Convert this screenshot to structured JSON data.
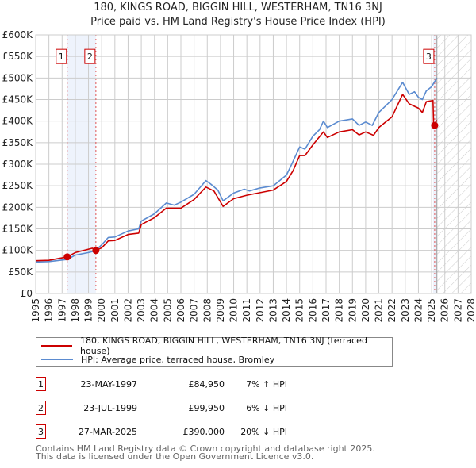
{
  "chart_data": {
    "type": "line",
    "title": "180, KINGS ROAD, BIGGIN HILL, WESTERHAM, TN16 3NJ",
    "subtitle": "Price paid vs. HM Land Registry's House Price Index (HPI)",
    "xlim": [
      1995,
      2028
    ],
    "ylim": [
      0,
      600000
    ],
    "yticks": [
      0,
      50000,
      100000,
      150000,
      200000,
      250000,
      300000,
      350000,
      400000,
      450000,
      500000,
      550000,
      600000
    ],
    "ytick_labels": [
      "£0",
      "£50K",
      "£100K",
      "£150K",
      "£200K",
      "£250K",
      "£300K",
      "£350K",
      "£400K",
      "£450K",
      "£500K",
      "£550K",
      "£600K"
    ],
    "xticks": [
      1995,
      1996,
      1997,
      1998,
      1999,
      2000,
      2001,
      2002,
      2003,
      2004,
      2005,
      2006,
      2007,
      2008,
      2009,
      2010,
      2011,
      2012,
      2013,
      2014,
      2015,
      2016,
      2017,
      2018,
      2019,
      2020,
      2021,
      2022,
      2023,
      2024,
      2025,
      2026,
      2027,
      2028
    ],
    "grid": true,
    "forecast_hatch_from": 2025.4,
    "colors": {
      "property": "#cc0000",
      "hpi": "#5b8bd0"
    },
    "series": [
      {
        "name": "180, KINGS ROAD, BIGGIN HILL, WESTERHAM, TN16 3NJ (terraced house)",
        "x": [
          1995,
          1996,
          1997.39,
          1998,
          1999.3,
          1999.56,
          2000,
          2000.5,
          2001,
          2002,
          2002.8,
          2003,
          2004,
          2004.9,
          2006,
          2007,
          2007.9,
          2008.5,
          2009.2,
          2010,
          2011,
          2012,
          2013,
          2014,
          2014.5,
          2015,
          2015.4,
          2016,
          2016.8,
          2017.1,
          2018,
          2019,
          2019.5,
          2020,
          2020.6,
          2021,
          2022,
          2022.8,
          2023.3,
          2024,
          2024.3,
          2024.6,
          2025.1,
          2025.15,
          2025.4
        ],
        "y": [
          76000,
          77000,
          84950,
          95000,
          105000,
          99950,
          106000,
          122000,
          123000,
          137000,
          140000,
          160000,
          176000,
          198000,
          198000,
          218000,
          247000,
          238000,
          202000,
          220000,
          228000,
          234000,
          240000,
          260000,
          285000,
          320000,
          320000,
          345000,
          375000,
          362000,
          375000,
          380000,
          368000,
          375000,
          367000,
          385000,
          410000,
          462000,
          440000,
          430000,
          420000,
          445000,
          448000,
          390000,
          402000
        ]
      },
      {
        "name": "HPI: Average price, terraced house, Bromley",
        "x": [
          1995,
          1996,
          1997.4,
          1998,
          1999,
          1999.5,
          2000,
          2000.5,
          2001,
          2002,
          2002.8,
          2003,
          2004,
          2004.9,
          2005.5,
          2006,
          2007,
          2007.9,
          2008.3,
          2008.8,
          2009.2,
          2010,
          2010.8,
          2011.2,
          2012,
          2013,
          2014,
          2014.4,
          2015,
          2015.4,
          2016,
          2016.5,
          2016.8,
          2017.1,
          2018,
          2019,
          2019.5,
          2020,
          2020.5,
          2021,
          2021.5,
          2022,
          2022.8,
          2023.3,
          2023.7,
          2024,
          2024.3,
          2024.6,
          2025,
          2025.4
        ],
        "y": [
          73000,
          74000,
          79000,
          89000,
          95000,
          99000,
          113000,
          130000,
          131000,
          145000,
          150000,
          168000,
          185000,
          210000,
          205000,
          212000,
          230000,
          262000,
          253000,
          240000,
          215000,
          233000,
          242000,
          238000,
          245000,
          250000,
          275000,
          300000,
          340000,
          335000,
          365000,
          380000,
          400000,
          385000,
          400000,
          405000,
          390000,
          398000,
          390000,
          420000,
          435000,
          450000,
          490000,
          462000,
          468000,
          455000,
          450000,
          470000,
          480000,
          500000
        ]
      }
    ],
    "sales": [
      {
        "label": "1",
        "x": 1997.39,
        "price": 84950
      },
      {
        "label": "2",
        "x": 1999.56,
        "price": 99950
      },
      {
        "label": "3",
        "x": 2025.23,
        "price": 390000
      }
    ]
  },
  "legend": {
    "property": "180, KINGS ROAD, BIGGIN HILL, WESTERHAM, TN16 3NJ (terraced house)",
    "hpi": "HPI: Average price, terraced house, Bromley"
  },
  "transactions": [
    {
      "num": "1",
      "date": "23-MAY-1997",
      "price": "£84,950",
      "hpi": "7% ↑ HPI"
    },
    {
      "num": "2",
      "date": "23-JUL-1999",
      "price": "£99,950",
      "hpi": "6% ↓ HPI"
    },
    {
      "num": "3",
      "date": "27-MAR-2025",
      "price": "£390,000",
      "hpi": "20% ↓ HPI"
    }
  ],
  "footer": {
    "line1": "Contains HM Land Registry data © Crown copyright and database right 2025.",
    "line2": "This data is licensed under the Open Government Licence v3.0."
  }
}
